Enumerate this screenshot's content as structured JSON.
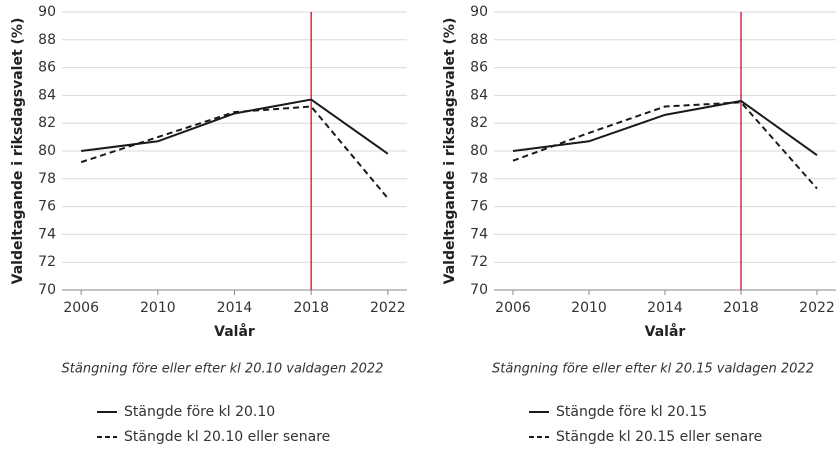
{
  "chart_data": [
    {
      "type": "line",
      "ylabel": "Valdeltagande i riksdagsvalet (%)",
      "xlabel": "Valår",
      "caption": "Stängning före eller efter kl 20.10 valdagen 2022",
      "x": [
        2006,
        2010,
        2014,
        2018,
        2022
      ],
      "xlim": [
        2005,
        2023
      ],
      "xticks": [
        2006,
        2010,
        2014,
        2018,
        2022
      ],
      "ylim": [
        70,
        90
      ],
      "yticks": [
        70,
        72,
        74,
        76,
        78,
        80,
        82,
        84,
        86,
        88,
        90
      ],
      "grid": true,
      "vline": {
        "x": 2018,
        "color": "#c8102e"
      },
      "series": [
        {
          "name": "Stängde före kl 20.10",
          "color": "#1a1a1a",
          "linestyle": "solid",
          "values": [
            80.0,
            80.7,
            82.7,
            83.7,
            79.8
          ]
        },
        {
          "name": "Stängde kl 20.10 eller senare",
          "color": "#1a1a1a",
          "linestyle": "dashed",
          "values": [
            79.2,
            81.0,
            82.8,
            83.2,
            76.6
          ]
        }
      ]
    },
    {
      "type": "line",
      "ylabel": "Valdeltagande i riksdagsvalet (%)",
      "xlabel": "Valår",
      "caption": "Stängning före eller efter kl 20.15 valdagen 2022",
      "x": [
        2006,
        2010,
        2014,
        2018,
        2022
      ],
      "xlim": [
        2005,
        2023
      ],
      "xticks": [
        2006,
        2010,
        2014,
        2018,
        2022
      ],
      "ylim": [
        70,
        90
      ],
      "yticks": [
        70,
        72,
        74,
        76,
        78,
        80,
        82,
        84,
        86,
        88,
        90
      ],
      "grid": true,
      "vline": {
        "x": 2018,
        "color": "#c8102e"
      },
      "series": [
        {
          "name": "Stängde före kl 20.15",
          "color": "#1a1a1a",
          "linestyle": "solid",
          "values": [
            80.0,
            80.7,
            82.6,
            83.6,
            79.7
          ]
        },
        {
          "name": "Stängde kl 20.15 eller senare",
          "color": "#1a1a1a",
          "linestyle": "dashed",
          "values": [
            79.3,
            81.3,
            83.2,
            83.5,
            77.3
          ]
        }
      ]
    }
  ]
}
